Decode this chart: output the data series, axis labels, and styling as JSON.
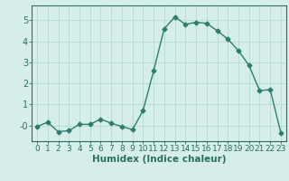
{
  "x": [
    0,
    1,
    2,
    3,
    4,
    5,
    6,
    7,
    8,
    9,
    10,
    11,
    12,
    13,
    14,
    15,
    16,
    17,
    18,
    19,
    20,
    21,
    22,
    23
  ],
  "y": [
    -0.05,
    0.15,
    -0.3,
    -0.25,
    0.05,
    0.05,
    0.3,
    0.1,
    -0.05,
    -0.2,
    0.7,
    2.6,
    4.6,
    5.15,
    4.8,
    4.9,
    4.85,
    4.5,
    4.1,
    3.55,
    2.85,
    1.65,
    1.7,
    -0.35
  ],
  "xlim": [
    -0.5,
    23.5
  ],
  "ylim": [
    -0.75,
    5.7
  ],
  "yticks": [
    0,
    1,
    2,
    3,
    4,
    5
  ],
  "xtick_labels": [
    "0",
    "1",
    "2",
    "3",
    "4",
    "5",
    "6",
    "7",
    "8",
    "9",
    "10",
    "11",
    "12",
    "13",
    "14",
    "15",
    "16",
    "17",
    "18",
    "19",
    "20",
    "21",
    "22",
    "23"
  ],
  "xlabel": "Humidex (Indice chaleur)",
  "line_color": "#2d7d6e",
  "marker": "D",
  "marker_size": 2.5,
  "bg_color": "#d6eeea",
  "grid_color": "#b8d8d4",
  "tick_color": "#2d6e60",
  "label_color": "#2d6e60",
  "axis_color": "#2d6e60",
  "font_size_xlabel": 7.5,
  "font_size_ticks": 7
}
